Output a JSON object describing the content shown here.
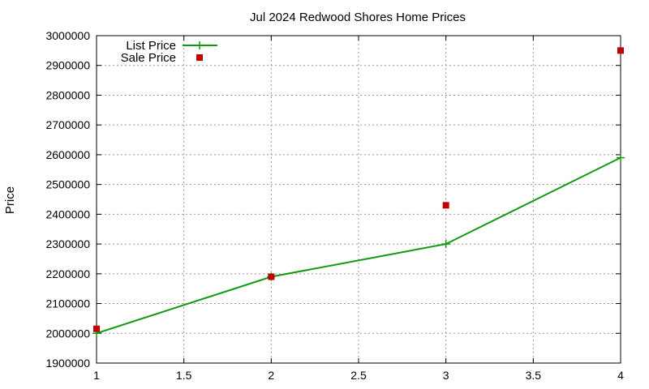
{
  "chart_data": {
    "type": "line",
    "title": "Jul 2024 Redwood Shores Home Prices",
    "xlabel": "",
    "ylabel": "Price",
    "xlim": [
      1,
      4
    ],
    "ylim": [
      1900000,
      3000000
    ],
    "x_ticks": [
      "1",
      "1.5",
      "2",
      "2.5",
      "3",
      "3.5",
      "4"
    ],
    "y_ticks": [
      "1900000",
      "2000000",
      "2100000",
      "2200000",
      "2300000",
      "2400000",
      "2500000",
      "2600000",
      "2700000",
      "2800000",
      "2900000",
      "3000000"
    ],
    "grid": true,
    "legend_position": "top-left",
    "series": [
      {
        "name": "List Price",
        "style": "line+cross",
        "color": "#109a10",
        "x": [
          1,
          2,
          3,
          4
        ],
        "values": [
          2000000,
          2190000,
          2300000,
          2590000
        ]
      },
      {
        "name": "Sale Price",
        "style": "square-markers",
        "color": "#c00000",
        "x": [
          1,
          2,
          3,
          4
        ],
        "values": [
          2015000,
          2190000,
          2430000,
          2950000
        ]
      }
    ]
  }
}
